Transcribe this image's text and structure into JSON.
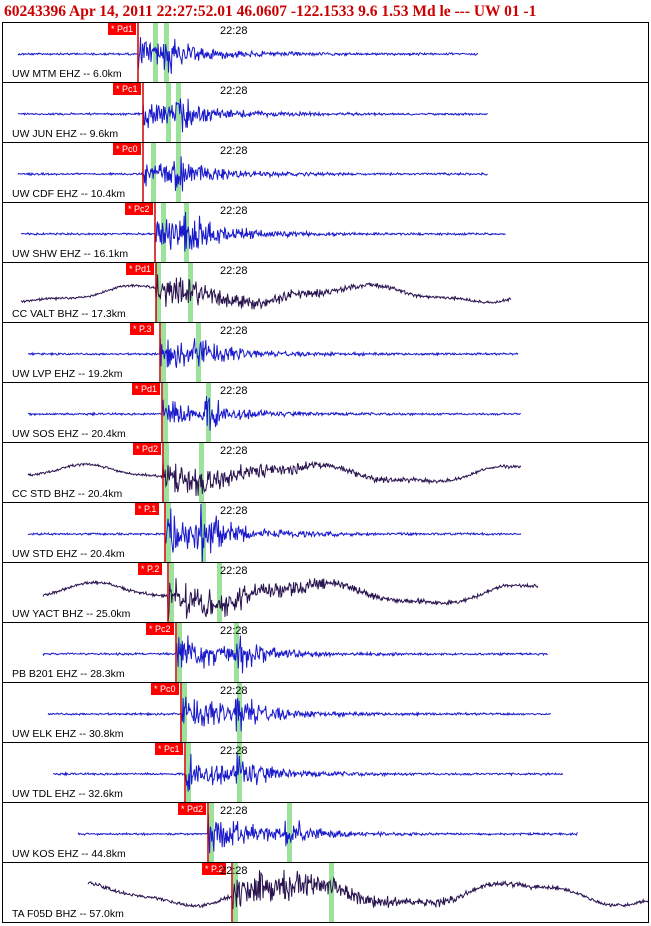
{
  "header": {
    "text": "60243396 Apr 14, 2011 22:27:52.01   46.0607 -122.1533  9.6 1.53 Md le --- UW 01  -1"
  },
  "colors": {
    "header_text": "#cc0000",
    "ehz_trace": "#1a1acc",
    "bhz_trace": "#2a1450",
    "pick_flag": "#ff0000",
    "pick_line": "#cc0000",
    "phase_marker": "#9be39b"
  },
  "chart_data": {
    "type": "line",
    "title": "60243396 Apr 14, 2011 22:27:52.01   46.0607 -122.1533  9.6 1.53 Md le --- UW 01  -1",
    "time_tick": "22:28",
    "panels": [
      {
        "label": "UW MTM EHZ -- 6.0km",
        "pick": "* Pd1",
        "style": "ehz"
      },
      {
        "label": "UW JUN EHZ -- 9.6km",
        "pick": "* Pc1",
        "style": "ehz"
      },
      {
        "label": "UW CDF EHZ -- 10.4km",
        "pick": "* Pc0",
        "style": "ehz"
      },
      {
        "label": "UW SHW EHZ -- 16.1km",
        "pick": "* Pc2",
        "style": "ehz"
      },
      {
        "label": "CC VALT BHZ -- 17.3km",
        "pick": "* Pd1",
        "style": "bhz"
      },
      {
        "label": "UW LVP EHZ -- 19.2km",
        "pick": "* P.3",
        "style": "ehz"
      },
      {
        "label": "UW SOS EHZ -- 20.4km",
        "pick": "* Pd1",
        "style": "ehz"
      },
      {
        "label": "CC STD BHZ -- 20.4km",
        "pick": "* Pd2",
        "style": "bhz"
      },
      {
        "label": "UW STD EHZ -- 20.4km",
        "pick": "* P.1",
        "style": "ehz"
      },
      {
        "label": "UW YACT BHZ -- 25.0km",
        "pick": "* P.2",
        "style": "bhz"
      },
      {
        "label": "PB B201 EHZ -- 28.3km",
        "pick": "* Pc2",
        "style": "ehz"
      },
      {
        "label": "UW ELK EHZ -- 30.8km",
        "pick": "* Pc0",
        "style": "ehz"
      },
      {
        "label": "UW TDL EHZ -- 32.6km",
        "pick": "* Pc1",
        "style": "ehz"
      },
      {
        "label": "UW KOS EHZ -- 44.8km",
        "pick": "* Pd2",
        "style": "ehz"
      },
      {
        "label": "TA F05D BHZ -- 57.0km",
        "pick": "* P.2",
        "style": "bhz"
      }
    ]
  }
}
